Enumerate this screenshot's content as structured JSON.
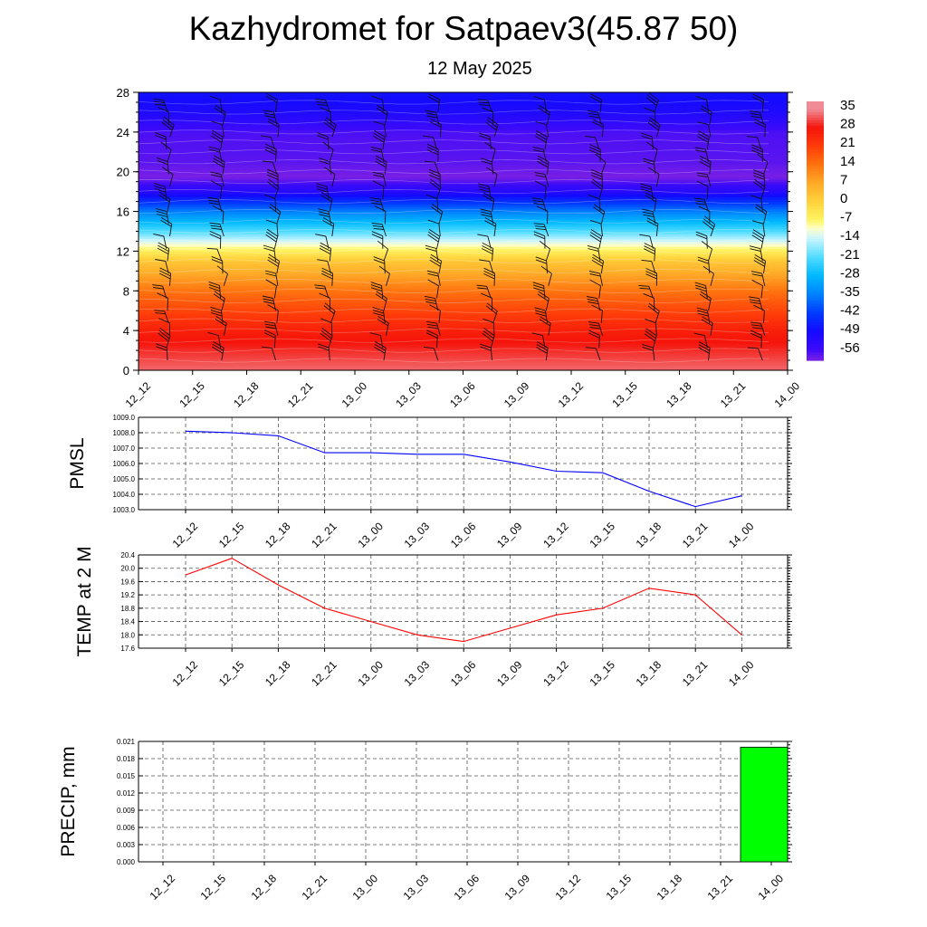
{
  "title": "Kazhydromet for Satpaev3(45.87 50)",
  "subtitle": "12 May 2025",
  "chart_data": [
    {
      "type": "heatmap",
      "title": "",
      "xlabel": "",
      "ylabel": "",
      "x_categories": [
        "12_12",
        "12_15",
        "12_18",
        "12_21",
        "13_00",
        "13_03",
        "13_06",
        "13_09",
        "13_12",
        "13_15",
        "13_18",
        "13_21",
        "14_00"
      ],
      "y_ticks": [
        0,
        4,
        8,
        12,
        16,
        20,
        24,
        28
      ],
      "ylim": [
        0,
        28
      ],
      "colorbar": {
        "labels": [
          "35",
          "28",
          "21",
          "14",
          "7",
          "0",
          "-7",
          "-14",
          "-21",
          "-28",
          "-35",
          "-42",
          "-49",
          "-56"
        ],
        "range": [
          -60,
          38
        ]
      },
      "level_temperatures": [
        {
          "level": 0,
          "value": 33
        },
        {
          "level": 4,
          "value": 26
        },
        {
          "level": 8,
          "value": 14
        },
        {
          "level": 11,
          "value": 2
        },
        {
          "level": 12.9,
          "value": -12
        },
        {
          "level": 14,
          "value": -21
        },
        {
          "level": 16,
          "value": -35
        },
        {
          "level": 18,
          "value": -52
        },
        {
          "level": 19.5,
          "value": -60
        },
        {
          "level": 21,
          "value": -58
        },
        {
          "level": 24,
          "value": -57
        },
        {
          "level": 26,
          "value": -51
        },
        {
          "level": 28,
          "value": -48
        }
      ],
      "wind_barbs": "present",
      "grid": false
    },
    {
      "type": "line",
      "ylabel": "PMSL",
      "x_categories": [
        "12_12",
        "12_15",
        "12_18",
        "12_21",
        "13_00",
        "13_03",
        "13_06",
        "13_09",
        "13_12",
        "13_15",
        "13_18",
        "13_21",
        "14_00"
      ],
      "ylim": [
        1003.0,
        1009.0
      ],
      "y_ticks": [
        "1003.0",
        "1004.0",
        "1005.0",
        "1006.0",
        "1007.0",
        "1008.0",
        "1009.0"
      ],
      "series": [
        {
          "values": [
            1008.1,
            1008.0,
            1007.8,
            1006.7,
            1006.7,
            1006.6,
            1006.6,
            1006.1,
            1005.5,
            1005.4,
            1004.2,
            1003.2,
            1003.9
          ],
          "color": "#0000ff"
        }
      ],
      "grid": true
    },
    {
      "type": "line",
      "ylabel": "TEMP at 2 M",
      "x_categories": [
        "12_12",
        "12_15",
        "12_18",
        "12_21",
        "13_00",
        "13_03",
        "13_06",
        "13_09",
        "13_12",
        "13_15",
        "13_18",
        "13_21",
        "14_00"
      ],
      "ylim": [
        17.6,
        20.4
      ],
      "y_ticks": [
        "17.6",
        "18.0",
        "18.4",
        "18.8",
        "19.2",
        "19.6",
        "20.0",
        "20.4"
      ],
      "series": [
        {
          "values": [
            19.8,
            20.3,
            19.5,
            18.8,
            18.4,
            18.0,
            17.8,
            18.2,
            18.6,
            18.8,
            19.4,
            19.2,
            18.0
          ],
          "color": "#ff0000"
        }
      ],
      "grid": true
    },
    {
      "type": "bar",
      "ylabel": "PRECIP, mm",
      "x_categories": [
        "12_12",
        "12_15",
        "12_18",
        "12_21",
        "13_00",
        "13_03",
        "13_06",
        "13_09",
        "13_12",
        "13_15",
        "13_18",
        "13_21",
        "14_00"
      ],
      "ylim": [
        0.0,
        0.021
      ],
      "y_ticks": [
        "0.000",
        "0.003",
        "0.006",
        "0.009",
        "0.012",
        "0.015",
        "0.018",
        "0.021"
      ],
      "values": [
        0,
        0,
        0,
        0,
        0,
        0,
        0,
        0,
        0,
        0,
        0,
        0,
        0.02
      ],
      "bar_color": "#00ff00",
      "grid": true
    }
  ]
}
